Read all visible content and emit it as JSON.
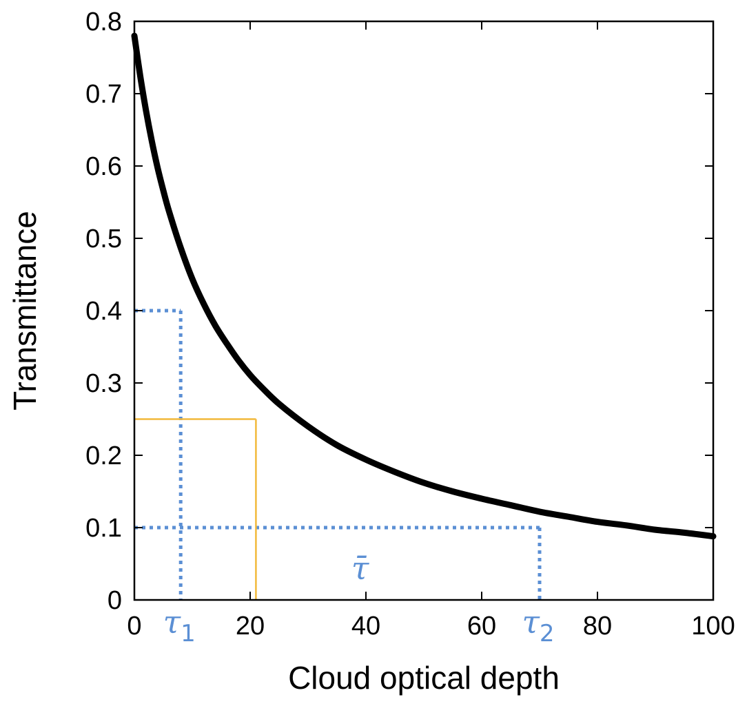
{
  "chart_data": {
    "type": "line",
    "xlabel": "Cloud optical depth",
    "ylabel": "Transmittance",
    "xlim": [
      0,
      100
    ],
    "ylim": [
      0,
      0.8
    ],
    "x_ticks": [
      0,
      20,
      40,
      60,
      80,
      100
    ],
    "x_tick_labels": [
      "0",
      "20",
      "40",
      "60",
      "80",
      "100"
    ],
    "y_ticks": [
      0,
      0.1,
      0.2,
      0.3,
      0.4,
      0.5,
      0.6,
      0.7,
      0.8
    ],
    "y_tick_labels": [
      "0",
      "0.1",
      "0.2",
      "0.3",
      "0.4",
      "0.5",
      "0.6",
      "0.7",
      "0.8"
    ],
    "grid": false,
    "series": [
      {
        "color": "#000000",
        "x": [
          0,
          1,
          2,
          3,
          4,
          5,
          6,
          8,
          10,
          12,
          14,
          16,
          18,
          20,
          22,
          25,
          30,
          35,
          40,
          45,
          50,
          55,
          60,
          65,
          70,
          75,
          80,
          85,
          90,
          95,
          100
        ],
        "y": [
          0.78,
          0.725,
          0.677,
          0.635,
          0.598,
          0.566,
          0.537,
          0.487,
          0.444,
          0.409,
          0.379,
          0.354,
          0.331,
          0.311,
          0.294,
          0.271,
          0.24,
          0.214,
          0.194,
          0.177,
          0.162,
          0.15,
          0.14,
          0.131,
          0.122,
          0.115,
          0.108,
          0.103,
          0.097,
          0.093,
          0.088
        ]
      }
    ],
    "guides": [
      {
        "style": "dotted",
        "color": "#5b8fd4",
        "x": 8,
        "y": 0.4,
        "x_label": "τ",
        "x_label_sub": "1"
      },
      {
        "style": "dotted",
        "color": "#5b8fd4",
        "x": 70,
        "y": 0.1,
        "x_label": "τ",
        "x_label_sub": "2"
      },
      {
        "style": "solid",
        "color": "#f2b93b",
        "x": 21,
        "y": 0.25
      }
    ],
    "annotations": [
      {
        "text": "τ̄",
        "x": 39,
        "y": 0.04,
        "color": "#5b8fd4"
      }
    ]
  }
}
